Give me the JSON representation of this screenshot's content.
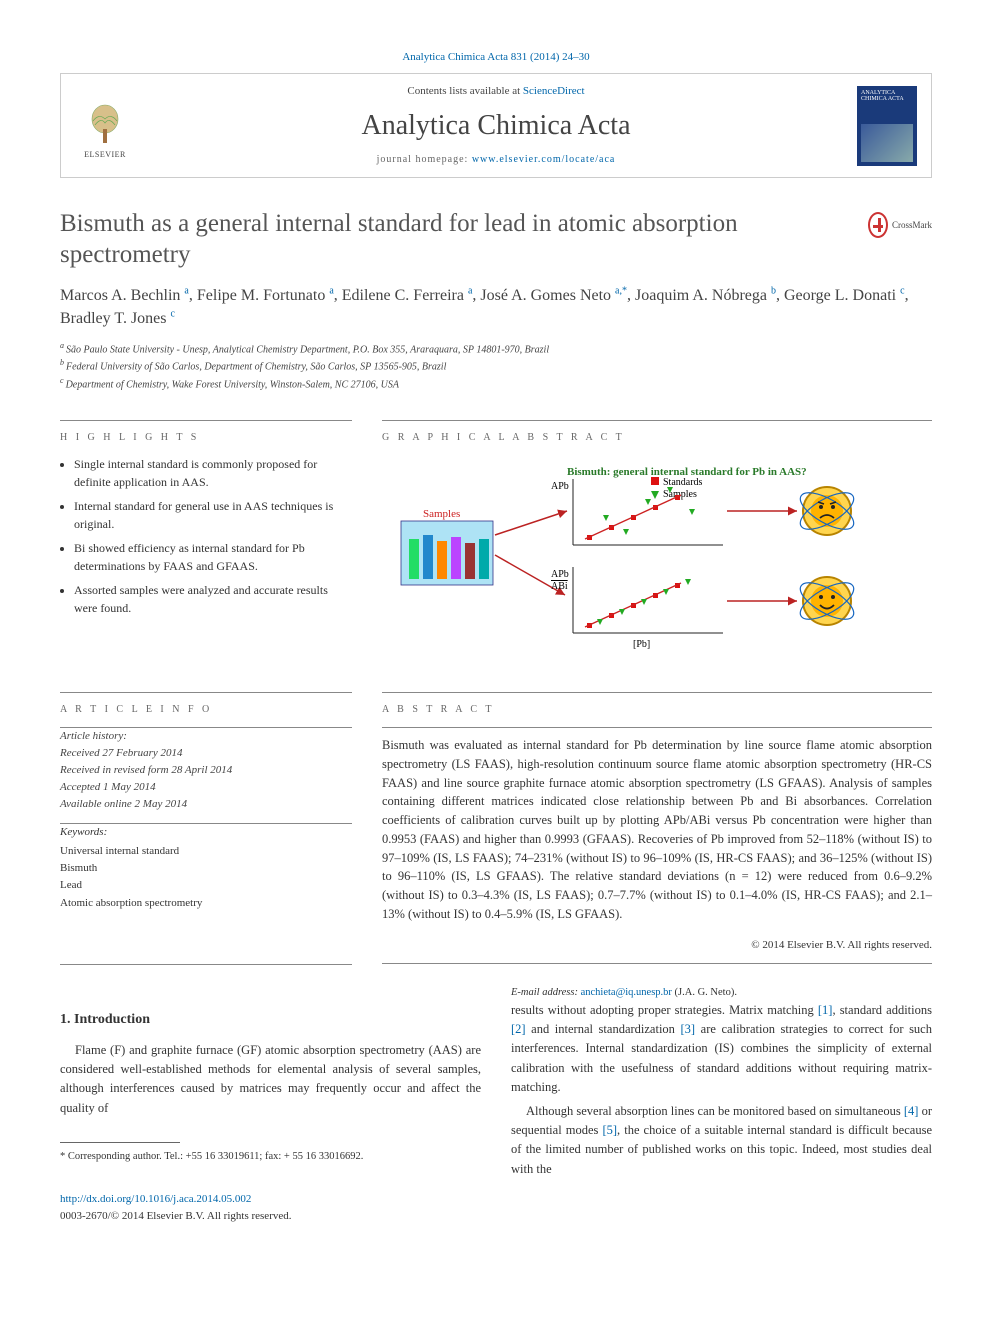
{
  "crumb": "Analytica Chimica Acta 831 (2014) 24–30",
  "header": {
    "contents_prefix": "Contents lists available at ",
    "contents_link": "ScienceDirect",
    "journal": "Analytica Chimica Acta",
    "homepage_prefix": "journal homepage: ",
    "homepage_link": "www.elsevier.com/locate/aca",
    "publisher": "ELSEVIER",
    "cover_label": "ANALYTICA CHIMICA ACTA"
  },
  "title": "Bismuth as a general internal standard for lead in atomic absorption spectrometry",
  "crossmark": "CrossMark",
  "authors_html": "Marcos A. Bechlin a, Felipe M. Fortunato a, Edilene C. Ferreira a, José A. Gomes Neto a,*, Joaquim A. Nóbrega b, George L. Donati c, Bradley T. Jones c",
  "authors": [
    {
      "name": "Marcos A. Bechlin",
      "aff": "a"
    },
    {
      "name": "Felipe M. Fortunato",
      "aff": "a"
    },
    {
      "name": "Edilene C. Ferreira",
      "aff": "a"
    },
    {
      "name": "José A. Gomes Neto",
      "aff": "a,*"
    },
    {
      "name": "Joaquim A. Nóbrega",
      "aff": "b"
    },
    {
      "name": "George L. Donati",
      "aff": "c"
    },
    {
      "name": "Bradley T. Jones",
      "aff": "c"
    }
  ],
  "affiliations": [
    {
      "sup": "a",
      "text": "São Paulo State University - Unesp, Analytical Chemistry Department, P.O. Box 355, Araraquara, SP 14801-970, Brazil"
    },
    {
      "sup": "b",
      "text": "Federal University of São Carlos, Department of Chemistry, São Carlos, SP 13565-905, Brazil"
    },
    {
      "sup": "c",
      "text": "Department of Chemistry, Wake Forest University, Winston-Salem, NC 27106, USA"
    }
  ],
  "section_heads": {
    "highlights": "H I G H L I G H T S",
    "graphical": "G R A P H I C A L  A B S T R A C T",
    "artinfo": "A R T I C L E  I N F O",
    "abstract": "A B S T R A C T"
  },
  "highlights": [
    "Single internal standard is commonly proposed for definite application in AAS.",
    "Internal standard for general use in AAS techniques is original.",
    "Bi showed efficiency as internal standard for Pb determinations by FAAS and GFAAS.",
    "Assorted samples were analyzed and accurate results were found."
  ],
  "graphical": {
    "caption_top": "Bismuth: general internal standard for Pb in AAS?",
    "legend": [
      "Standards",
      "Samples"
    ],
    "y_labels": [
      "APb",
      "APb",
      "ABi"
    ],
    "x_label": "[Pb]",
    "box_label": "Samples",
    "colors": {
      "std_marker": "#d11",
      "sample_marker": "#2a2",
      "axis": "#222",
      "line": "#c22",
      "samples_bg": "#aee3f5",
      "atom1": "#ffb300",
      "atom2": "#1565c0",
      "atom_outer": "#ffd54f"
    }
  },
  "article_info": {
    "history_label": "Article history:",
    "received": "Received 27 February 2014",
    "revised": "Received in revised form 28 April 2014",
    "accepted": "Accepted 1 May 2014",
    "online": "Available online 2 May 2014",
    "keywords_label": "Keywords:",
    "keywords": [
      "Universal internal standard",
      "Bismuth",
      "Lead",
      "Atomic absorption spectrometry"
    ]
  },
  "abstract": "Bismuth was evaluated as internal standard for Pb determination by line source flame atomic absorption spectrometry (LS FAAS), high-resolution continuum source flame atomic absorption spectrometry (HR-CS FAAS) and line source graphite furnace atomic absorption spectrometry (LS GFAAS). Analysis of samples containing different matrices indicated close relationship between Pb and Bi absorbances. Correlation coefficients of calibration curves built up by plotting APb/ABi versus Pb concentration were higher than 0.9953 (FAAS) and higher than 0.9993 (GFAAS). Recoveries of Pb improved from 52–118% (without IS) to 97–109% (IS, LS FAAS); 74–231% (without IS) to 96–109% (IS, HR-CS FAAS); and 36–125% (without IS) to 96–110% (IS, LS GFAAS). The relative standard deviations (n = 12) were reduced from 0.6–9.2% (without IS) to 0.3–4.3% (IS, LS FAAS); 0.7–7.7% (without IS) to 0.1–4.0% (IS, HR-CS FAAS); and 2.1–13% (without IS) to 0.4–5.9% (IS, LS GFAAS).",
  "copyright": "© 2014 Elsevier B.V. All rights reserved.",
  "intro": {
    "heading": "1. Introduction",
    "p1": "Flame (F) and graphite furnace (GF) atomic absorption spectrometry (AAS) are considered well-established methods for elemental analysis of several samples, although interferences caused by matrices may frequently occur and affect the quality of",
    "p2_a": "results without adopting proper strategies. Matrix matching ",
    "p2_b": ", standard additions ",
    "p2_c": " and internal standardization ",
    "p2_d": " are calibration strategies to correct for such interferences. Internal standardization (IS) combines the simplicity of external calibration with the usefulness of standard additions without requiring matrix-matching.",
    "p3_a": "Although several absorption lines can be monitored based on simultaneous ",
    "p3_b": " or sequential modes ",
    "p3_c": ", the choice of a suitable internal standard is difficult because of the limited number of published works on this topic. Indeed, most studies deal with the",
    "refs": {
      "r1": "[1]",
      "r2": "[2]",
      "r3": "[3]",
      "r4": "[4]",
      "r5": "[5]"
    }
  },
  "footer": {
    "corr": "* Corresponding author. Tel.: +55 16 33019611; fax: + 55 16 33016692.",
    "email_label": "E-mail address: ",
    "email": "anchieta@iq.unesp.br",
    "email_paren": " (J.A. G. Neto).",
    "doi": "http://dx.doi.org/10.1016/j.aca.2014.05.002",
    "issn": "0003-2670/© 2014 Elsevier B.V. All rights reserved."
  }
}
